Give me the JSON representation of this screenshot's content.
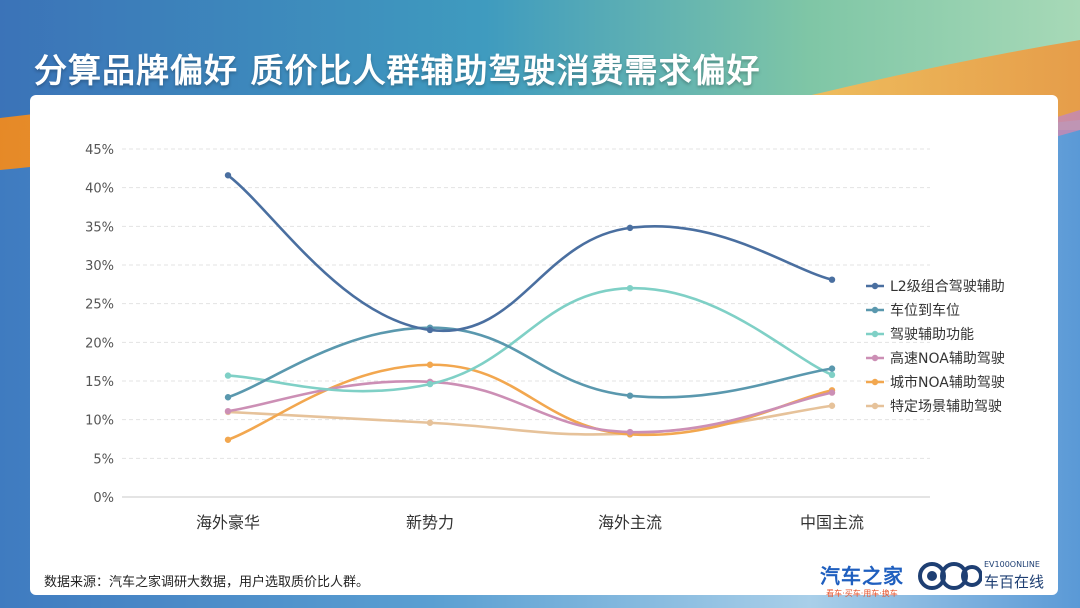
{
  "title": "分算品牌偏好 质价比人群辅助驾驶消费需求偏好",
  "source": "数据来源：汽车之家调研大数据，用户选取质价比人群。",
  "logos": {
    "autohome_name": "汽车之家",
    "autohome_tagline": "看车·买车·用车·换车",
    "ev100_en": "EV100ONLINE",
    "ev100_cn": "车百在线"
  },
  "colors": {
    "l2": "#4a6fa0",
    "parking": "#5a98ae",
    "assist": "#7fd0c6",
    "hwnoa": "#cc8fb5",
    "citynoa": "#f2a74f",
    "scene": "#e6c29a"
  },
  "chart_data": {
    "type": "line",
    "categories": [
      "海外豪华",
      "新势力",
      "海外主流",
      "中国主流"
    ],
    "ylim": [
      0,
      45
    ],
    "yticks": [
      "0%",
      "5%",
      "10%",
      "15%",
      "20%",
      "25%",
      "30%",
      "35%",
      "40%",
      "45%"
    ],
    "grid": true,
    "legend_position": "right",
    "series": [
      {
        "name": "L2级组合驾驶辅助",
        "values": [
          41.6,
          21.6,
          34.8,
          28.1
        ],
        "color": "#4a6fa0"
      },
      {
        "name": "车位到车位",
        "values": [
          12.9,
          21.9,
          13.1,
          16.6
        ],
        "color": "#5a98ae"
      },
      {
        "name": "驾驶辅助功能",
        "values": [
          15.7,
          14.6,
          27.0,
          15.8
        ],
        "color": "#7fd0c6"
      },
      {
        "name": "高速NOA辅助驾驶",
        "values": [
          11.1,
          14.9,
          8.4,
          13.5
        ],
        "color": "#cc8fb5"
      },
      {
        "name": "城市NOA辅助驾驶",
        "values": [
          7.4,
          17.1,
          8.1,
          13.8
        ],
        "color": "#f2a74f"
      },
      {
        "name": "特定场景辅助驾驶",
        "values": [
          11.0,
          9.6,
          8.2,
          11.8
        ],
        "color": "#e6c29a"
      }
    ]
  }
}
